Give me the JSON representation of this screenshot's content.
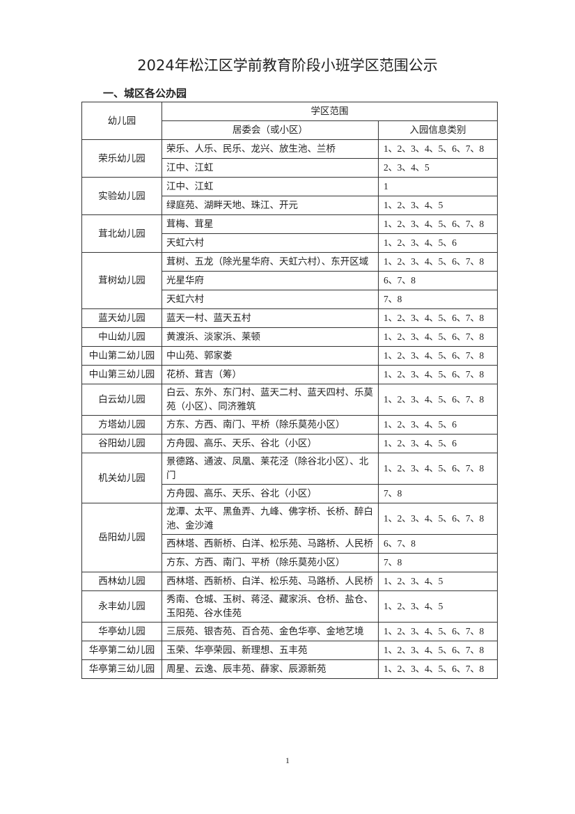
{
  "title": "2024年松江区学前教育阶段小班学区范围公示",
  "section": "一、城区各公办园",
  "table": {
    "header": {
      "kindergarten": "幼儿园",
      "district": "学区范围",
      "committee": "居委会（或小区）",
      "categories": "入园信息类别"
    },
    "groups": [
      {
        "name": "荣乐幼儿园",
        "rows": [
          [
            "荣乐、人乐、民乐、龙兴、放生池、兰桥",
            "1、2、3、4、5、6、7、8"
          ],
          [
            "江中、江虹",
            "2、3、4、5"
          ]
        ]
      },
      {
        "name": "实验幼儿园",
        "rows": [
          [
            "江中、江虹",
            "1"
          ],
          [
            "绿庭苑、湖畔天地、珠江、开元",
            "1、2、3、4、5"
          ]
        ]
      },
      {
        "name": "茸北幼儿园",
        "rows": [
          [
            "茸梅、茸星",
            "1、2、3、4、5、6、7、8"
          ],
          [
            "天虹六村",
            "1、2、3、4、5、6"
          ]
        ]
      },
      {
        "name": "茸树幼儿园",
        "rows": [
          [
            "茸树、五龙（除光星华府、天虹六村）、东开区域",
            "1、2、3、4、5、6、7、8"
          ],
          [
            "光星华府",
            "6、7、8"
          ],
          [
            "天虹六村",
            "7、8"
          ]
        ]
      },
      {
        "name": "蓝天幼儿园",
        "rows": [
          [
            "蓝天一村、蓝天五村",
            "1、2、3、4、5、6、7、8"
          ]
        ]
      },
      {
        "name": "中山幼儿园",
        "rows": [
          [
            "黄渡浜、淡家浜、莱顿",
            "1、2、3、4、5、6、7、8"
          ]
        ]
      },
      {
        "name": "中山第二幼儿园",
        "rows": [
          [
            "中山苑、郭家娄",
            "1、2、3、4、5、6、7、8"
          ]
        ]
      },
      {
        "name": "中山第三幼儿园",
        "rows": [
          [
            "花桥、茸吉（筹）",
            "1、2、3、4、5、6、7、8"
          ]
        ]
      },
      {
        "name": "白云幼儿园",
        "rows": [
          [
            "白云、东外、东门村、蓝天二村、蓝天四村、乐莫苑（小区）、同济雅筑",
            "1、2、3、4、5、6、7、8"
          ]
        ]
      },
      {
        "name": "方塔幼儿园",
        "rows": [
          [
            "方东、方西、南门、平桥（除乐莫苑小区）",
            "1、2、3、4、5、6"
          ]
        ]
      },
      {
        "name": "谷阳幼儿园",
        "rows": [
          [
            "方舟园、高乐、天乐、谷北（小区）",
            "1、2、3、4、5、6"
          ]
        ]
      },
      {
        "name": "机关幼儿园",
        "rows": [
          [
            "景德路、通波、凤凰、莱花泾（除谷北小区）、北门",
            "1、2、3、4、5、6、7、8"
          ],
          [
            "方舟园、高乐、天乐、谷北（小区）",
            "7、8"
          ]
        ]
      },
      {
        "name": "岳阳幼儿园",
        "rows": [
          [
            "龙潭、太平、黑鱼弄、九峰、佛字桥、长桥、醉白池、金沙滩",
            "1、2、3、4、5、6、7、8"
          ],
          [
            "西林塔、西新桥、白洋、松乐苑、马路桥、人民桥",
            "6、7、8"
          ],
          [
            "方东、方西、南门、平桥（除乐莫苑小区）",
            "7、8"
          ]
        ]
      },
      {
        "name": "西林幼儿园",
        "rows": [
          [
            "西林塔、西新桥、白洋、松乐苑、马路桥、人民桥",
            "1、2、3、4、5"
          ]
        ]
      },
      {
        "name": "永丰幼儿园",
        "rows": [
          [
            "秀南、仓城、玉树、蒋泾、藏家浜、仓桥、盐仓、玉阳苑、谷水佳苑",
            "1、2、3、4、5"
          ]
        ]
      },
      {
        "name": "华亭幼儿园",
        "rows": [
          [
            "三辰苑、银杏苑、百合苑、金色华亭、金地艺境",
            "1、2、3、4、5、6、7、8"
          ]
        ]
      },
      {
        "name": "华亭第二幼儿园",
        "rows": [
          [
            "玉荣、华亭荣园、新理想、五丰苑",
            "1、2、3、4、5、6、7、8"
          ]
        ]
      },
      {
        "name": "华亭第三幼儿园",
        "rows": [
          [
            "周星、云逸、辰丰苑、薛家、辰源新苑",
            "1、2、3、4、5、6、7、8"
          ]
        ]
      }
    ]
  },
  "page_number": "1"
}
